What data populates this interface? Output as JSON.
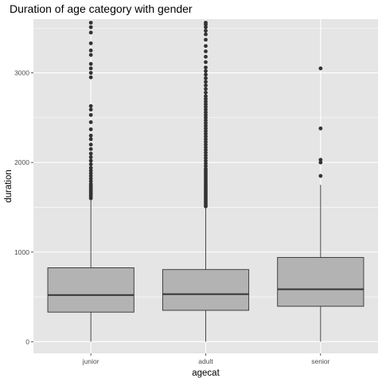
{
  "chart_data": {
    "type": "boxplot",
    "title": "Duration of age category with gender",
    "xlabel": "agecat",
    "ylabel": "duration",
    "categories": [
      "junior",
      "adult",
      "senior"
    ],
    "ylim": [
      -130,
      3600
    ],
    "y_ticks": [
      0,
      1000,
      2000,
      3000
    ],
    "grid": true,
    "legend": "none",
    "colors": {
      "panel_background": "#e5e5e5",
      "gridline": "#ffffff",
      "box_fill": "#b3b3b3",
      "box_stroke": "#333333",
      "outlier": "#333333"
    },
    "boxes": [
      {
        "category": "junior",
        "whisker_low": 0,
        "q1": 330,
        "median": 520,
        "q3": 825,
        "whisker_high": 1580,
        "outliers": [
          1600,
          1620,
          1640,
          1660,
          1680,
          1700,
          1720,
          1740,
          1760,
          1790,
          1820,
          1850,
          1880,
          1910,
          1940,
          1980,
          2020,
          2060,
          2100,
          2150,
          2200,
          2260,
          2300,
          2370,
          2450,
          2530,
          2590,
          2630,
          2950,
          3000,
          3050,
          3100,
          3200,
          3250,
          3330,
          3450,
          3510,
          3560
        ]
      },
      {
        "category": "adult",
        "whisker_low": 0,
        "q1": 350,
        "median": 530,
        "q3": 805,
        "whisker_high": 1490,
        "outliers": [
          1510,
          1530,
          1550,
          1570,
          1590,
          1610,
          1630,
          1650,
          1670,
          1690,
          1710,
          1730,
          1750,
          1770,
          1790,
          1810,
          1830,
          1850,
          1870,
          1890,
          1910,
          1930,
          1960,
          1990,
          2020,
          2050,
          2080,
          2110,
          2140,
          2170,
          2200,
          2230,
          2260,
          2290,
          2320,
          2350,
          2380,
          2410,
          2440,
          2470,
          2500,
          2530,
          2560,
          2590,
          2620,
          2650,
          2680,
          2710,
          2740,
          2780,
          2820,
          2860,
          2900,
          2940,
          2980,
          3020,
          3060,
          3120,
          3180,
          3240,
          3300,
          3370,
          3430,
          3470,
          3510,
          3540,
          3560
        ]
      },
      {
        "category": "senior",
        "whisker_low": 0,
        "q1": 395,
        "median": 585,
        "q3": 940,
        "whisker_high": 1750,
        "outliers": [
          1850,
          2000,
          2030,
          2380,
          3050
        ]
      }
    ]
  }
}
